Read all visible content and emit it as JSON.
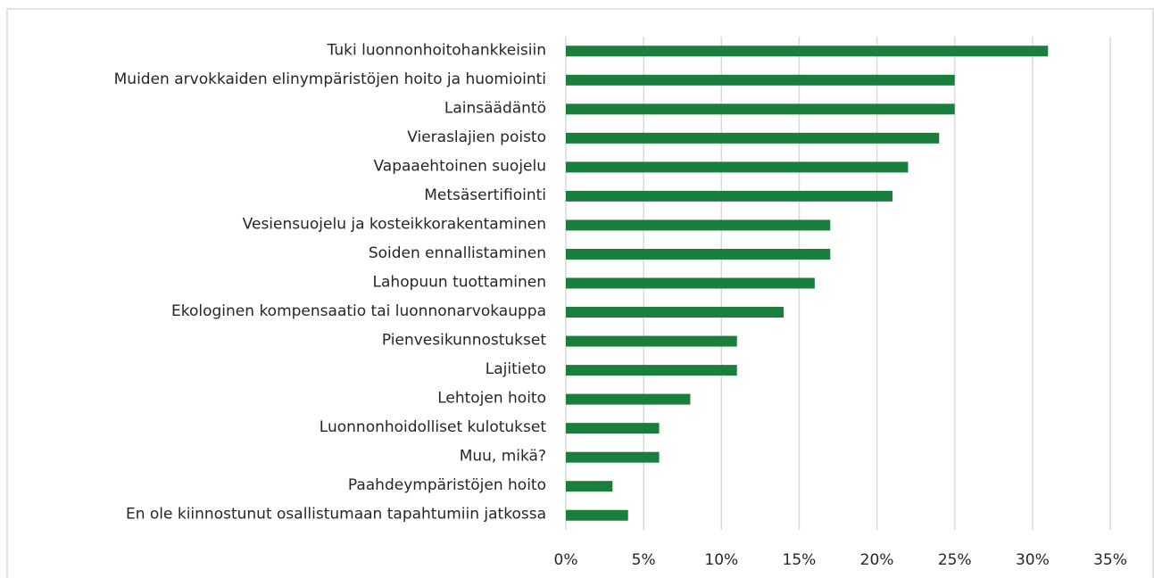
{
  "chart_data": {
    "type": "barh",
    "categories": [
      "Tuki luonnonhoitohankkeisiin",
      "Muiden arvokkaiden elinympäristöjen hoito ja huomiointi",
      "Lainsäädäntö",
      "Vieraslajien poisto",
      "Vapaaehtoinen suojelu",
      "Metsäsertifiointi",
      "Vesiensuojelu ja kosteikkorakentaminen",
      "Soiden ennallistaminen",
      "Lahopuun tuottaminen",
      "Ekologinen kompensaatio tai luonnonarvokauppa",
      "Pienvesikunnostukset",
      "Lajitieto",
      "Lehtojen hoito",
      "Luonnonhoidolliset kulotukset",
      "Muu, mikä?",
      "Paahdeympäristöjen hoito",
      "En ole kiinnostunut osallistumaan tapahtumiin jatkossa"
    ],
    "values": [
      31,
      25,
      25,
      24,
      22,
      21,
      17,
      17,
      16,
      14,
      11,
      11,
      8,
      6,
      6,
      3,
      4
    ],
    "color": "#1a7f3c",
    "xlim": [
      0,
      35
    ],
    "xticks": [
      {
        "value": 0,
        "label": "0%"
      },
      {
        "value": 5,
        "label": "5%"
      },
      {
        "value": 10,
        "label": "10%"
      },
      {
        "value": 15,
        "label": "15%"
      },
      {
        "value": 20,
        "label": "20%"
      },
      {
        "value": 25,
        "label": "25%"
      },
      {
        "value": 30,
        "label": "30%"
      },
      {
        "value": 35,
        "label": "35%"
      }
    ],
    "grid": true
  }
}
